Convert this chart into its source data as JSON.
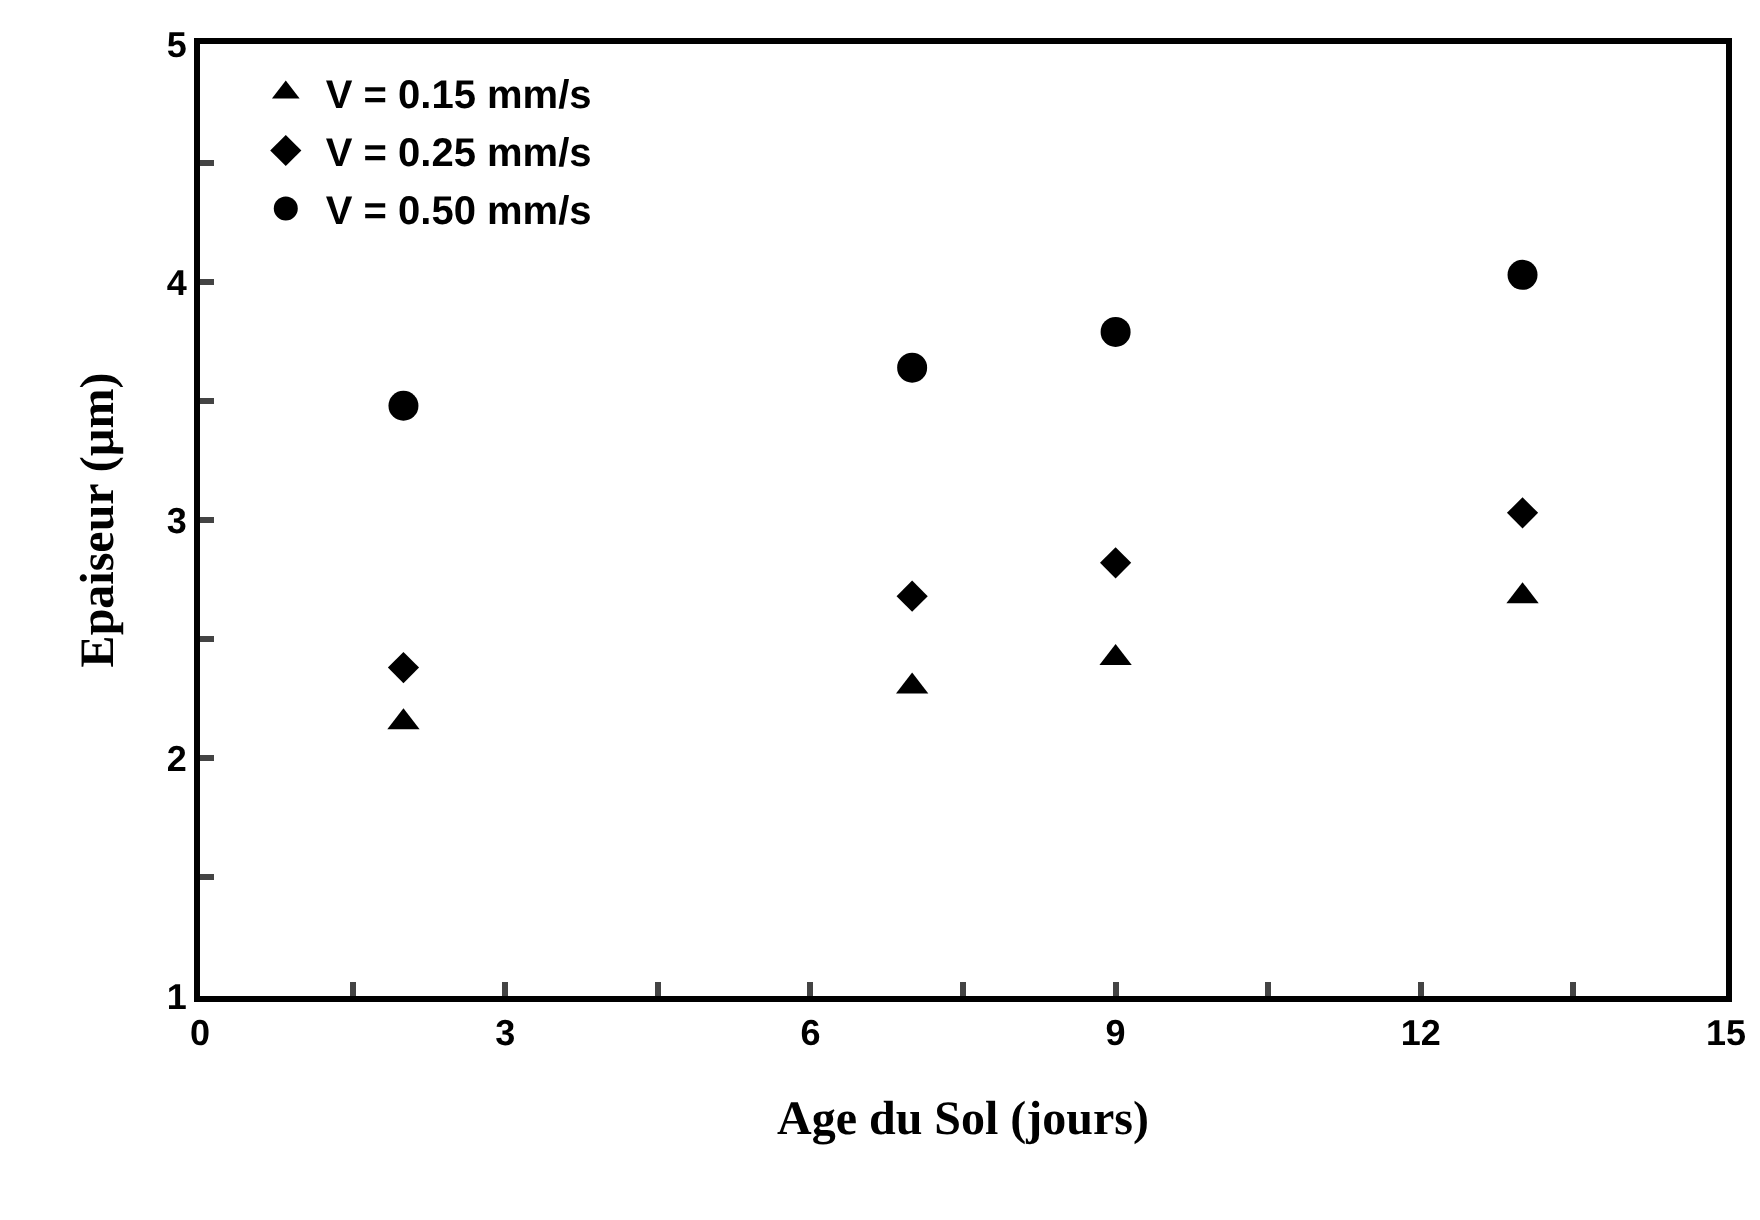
{
  "chart_data": {
    "type": "scatter",
    "xlabel": "Age du Sol (jours)",
    "ylabel": "Epaiseur (µm)",
    "x": [
      2,
      7,
      9,
      13
    ],
    "series": [
      {
        "name": "V = 0.15 mm/s",
        "color": "#000000",
        "marker": "triangle",
        "values": [
          2.15,
          2.3,
          2.42,
          2.68
        ]
      },
      {
        "name": "V = 0.25 mm/s",
        "color": "#000000",
        "marker": "diamond",
        "values": [
          2.38,
          2.68,
          2.82,
          3.03
        ]
      },
      {
        "name": "V = 0.50 mm/s",
        "color": "#000000",
        "marker": "circle",
        "values": [
          3.48,
          3.64,
          3.79,
          4.03
        ]
      }
    ],
    "xlim": [
      0,
      15
    ],
    "xticks": [
      0,
      {
        "value": 1.5,
        "label": null
      },
      3,
      {
        "value": 4.5,
        "label": null
      },
      6,
      {
        "value": 7.5,
        "label": null
      },
      9,
      {
        "value": 10.5,
        "label": null
      },
      12,
      {
        "value": 13.5,
        "label": null
      },
      15
    ],
    "ylim": [
      1,
      5
    ],
    "yticks": [
      1,
      {
        "value": 1.5,
        "label": null
      },
      2,
      {
        "value": 2.5,
        "label": null
      },
      3,
      {
        "value": 3.5,
        "label": null
      },
      4,
      {
        "value": 4.5,
        "label": null
      },
      5
    ],
    "grid": false,
    "legend": "top left"
  }
}
